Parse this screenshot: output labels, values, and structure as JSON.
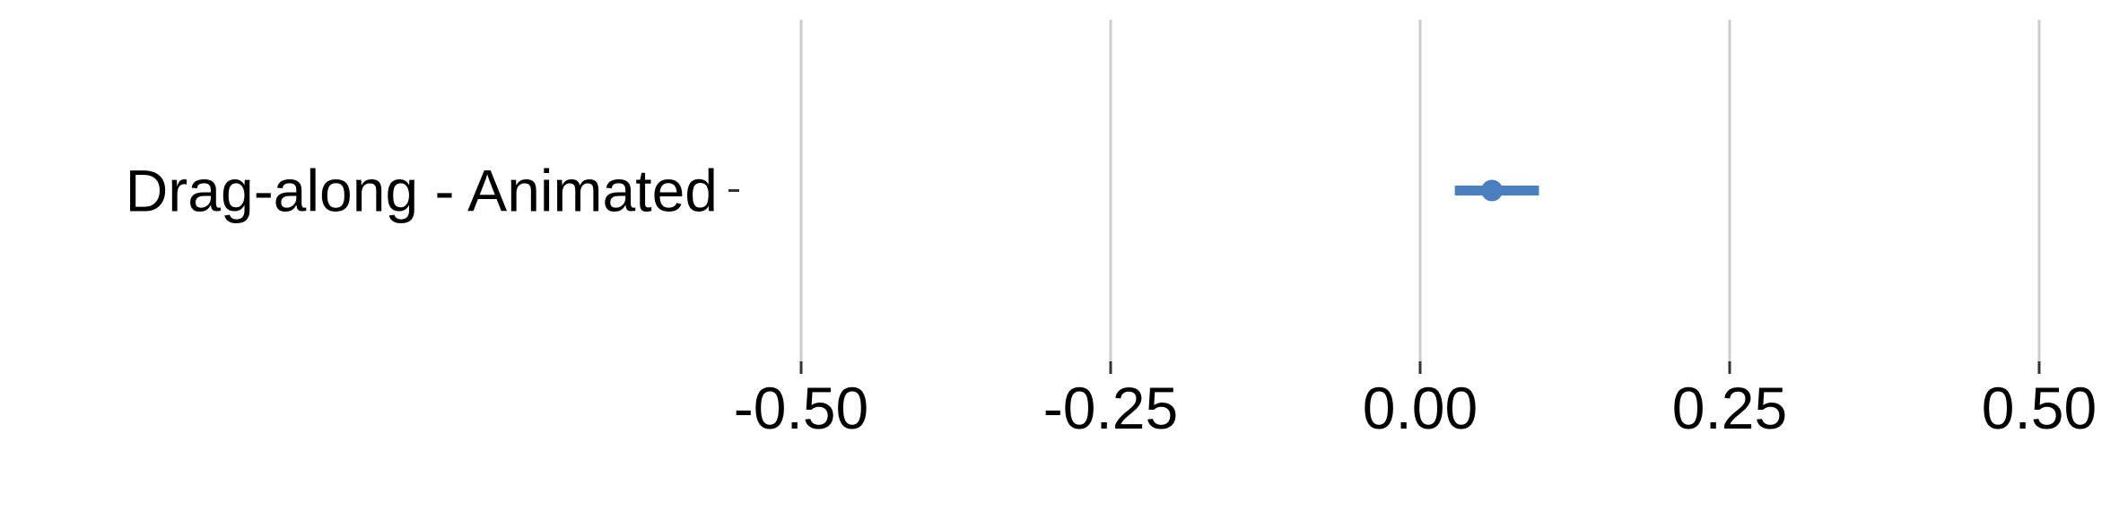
{
  "chart_data": {
    "type": "forest",
    "categories": [
      "Drag-along - Animated"
    ],
    "series": [
      {
        "points": [
          {
            "category": "Drag-along - Animated",
            "estimate": 0.058,
            "ci_low": 0.028,
            "ci_high": 0.096
          }
        ]
      }
    ],
    "xlim": [
      -0.5,
      0.5
    ],
    "x_ticks": [
      -0.5,
      -0.25,
      0.0,
      0.25,
      0.5
    ],
    "x_tick_labels": [
      "-0.50",
      "-0.25",
      "0.00",
      "0.25",
      "0.50"
    ],
    "grid": "vertical",
    "colors": {
      "point": "#4a7fc1",
      "grid": "#cccccc",
      "tick": "#333333"
    },
    "title": "",
    "xlabel": "",
    "ylabel": ""
  }
}
